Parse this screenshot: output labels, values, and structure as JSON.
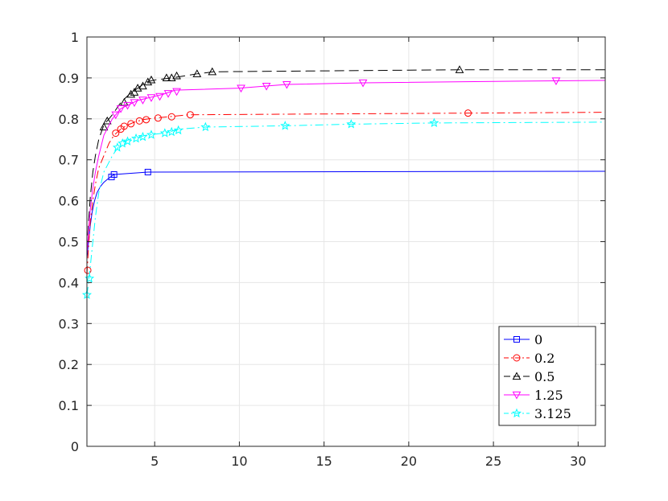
{
  "chart_data": {
    "type": "line",
    "title": "",
    "xlabel": "",
    "ylabel": "",
    "xlim": [
      1,
      31.6
    ],
    "ylim": [
      0,
      1
    ],
    "grid": true,
    "legend_position": "bottom-right",
    "x_ticks": [
      5,
      10,
      15,
      20,
      25,
      30
    ],
    "x_tick_labels": [
      "5",
      "10",
      "15",
      "20",
      "25",
      "30"
    ],
    "y_ticks": [
      0,
      0.1,
      0.2,
      0.3,
      0.4,
      0.5,
      0.6,
      0.7,
      0.8,
      0.9,
      1
    ],
    "y_tick_labels": [
      "0",
      "0.1",
      "0.2",
      "0.3",
      "0.4",
      "0.5",
      "0.6",
      "0.7",
      "0.8",
      "0.9",
      "1"
    ],
    "series": [
      {
        "name": "0",
        "color": "#0000ff",
        "line_style": "solid",
        "marker": "square",
        "points": [
          [
            1.0,
            0.46
          ],
          [
            1.1,
            0.5
          ],
          [
            1.2,
            0.54
          ],
          [
            1.3,
            0.57
          ],
          [
            1.45,
            0.6
          ],
          [
            1.6,
            0.62
          ],
          [
            1.8,
            0.635
          ],
          [
            2.0,
            0.645
          ],
          [
            2.2,
            0.652
          ],
          [
            2.4,
            0.658
          ],
          [
            2.6,
            0.664
          ],
          [
            4.6,
            0.67
          ],
          [
            31.6,
            0.672
          ]
        ],
        "markers": [
          [
            2.45,
            0.658
          ],
          [
            2.6,
            0.664
          ],
          [
            4.6,
            0.67
          ]
        ]
      },
      {
        "name": "0.2",
        "color": "#ff0000",
        "line_style": "dashdot",
        "marker": "circle",
        "points": [
          [
            1.0,
            0.42
          ],
          [
            1.1,
            0.49
          ],
          [
            1.2,
            0.55
          ],
          [
            1.35,
            0.6
          ],
          [
            1.5,
            0.64
          ],
          [
            1.7,
            0.68
          ],
          [
            2.0,
            0.71
          ],
          [
            2.3,
            0.74
          ],
          [
            2.6,
            0.76
          ],
          [
            3.0,
            0.775
          ],
          [
            3.4,
            0.785
          ],
          [
            3.8,
            0.792
          ],
          [
            4.3,
            0.798
          ],
          [
            5.0,
            0.802
          ],
          [
            5.8,
            0.805
          ],
          [
            7.0,
            0.81
          ],
          [
            23.5,
            0.814
          ],
          [
            31.6,
            0.816
          ]
        ],
        "markers": [
          [
            1.05,
            0.43
          ],
          [
            2.7,
            0.765
          ],
          [
            3.0,
            0.775
          ],
          [
            3.2,
            0.782
          ],
          [
            3.6,
            0.788
          ],
          [
            4.1,
            0.795
          ],
          [
            4.5,
            0.798
          ],
          [
            5.2,
            0.802
          ],
          [
            6.0,
            0.805
          ],
          [
            7.1,
            0.81
          ],
          [
            23.5,
            0.814
          ]
        ]
      },
      {
        "name": "0.5",
        "color": "#000000",
        "line_style": "dashed",
        "marker": "triangle-up",
        "points": [
          [
            1.0,
            0.48
          ],
          [
            1.1,
            0.55
          ],
          [
            1.2,
            0.61
          ],
          [
            1.35,
            0.67
          ],
          [
            1.5,
            0.71
          ],
          [
            1.7,
            0.75
          ],
          [
            2.0,
            0.785
          ],
          [
            2.5,
            0.81
          ],
          [
            3.0,
            0.84
          ],
          [
            3.5,
            0.86
          ],
          [
            4.0,
            0.875
          ],
          [
            4.5,
            0.89
          ],
          [
            5.0,
            0.895
          ],
          [
            6.0,
            0.9
          ],
          [
            7.5,
            0.91
          ],
          [
            8.5,
            0.915
          ],
          [
            23.0,
            0.92
          ],
          [
            31.6,
            0.92
          ]
        ],
        "markers": [
          [
            2.0,
            0.78
          ],
          [
            2.2,
            0.795
          ],
          [
            3.2,
            0.84
          ],
          [
            3.6,
            0.86
          ],
          [
            3.8,
            0.865
          ],
          [
            4.0,
            0.875
          ],
          [
            4.3,
            0.88
          ],
          [
            4.6,
            0.89
          ],
          [
            4.8,
            0.895
          ],
          [
            5.7,
            0.9
          ],
          [
            6.0,
            0.9
          ],
          [
            6.3,
            0.905
          ],
          [
            7.5,
            0.91
          ],
          [
            8.4,
            0.915
          ],
          [
            23.0,
            0.92
          ]
        ]
      },
      {
        "name": "1.25",
        "color": "#ff00ff",
        "line_style": "solid",
        "marker": "triangle-down",
        "points": [
          [
            1.0,
            0.47
          ],
          [
            1.1,
            0.53
          ],
          [
            1.2,
            0.58
          ],
          [
            1.35,
            0.63
          ],
          [
            1.5,
            0.67
          ],
          [
            1.7,
            0.71
          ],
          [
            2.0,
            0.76
          ],
          [
            2.5,
            0.8
          ],
          [
            3.0,
            0.825
          ],
          [
            3.5,
            0.835
          ],
          [
            4.0,
            0.845
          ],
          [
            4.5,
            0.85
          ],
          [
            5.0,
            0.855
          ],
          [
            5.5,
            0.86
          ],
          [
            6.2,
            0.87
          ],
          [
            10.0,
            0.875
          ],
          [
            11.5,
            0.88
          ],
          [
            12.8,
            0.884
          ],
          [
            17.3,
            0.888
          ],
          [
            28.7,
            0.893
          ],
          [
            31.6,
            0.894
          ]
        ],
        "markers": [
          [
            2.7,
            0.81
          ],
          [
            3.0,
            0.825
          ],
          [
            3.4,
            0.833
          ],
          [
            3.8,
            0.84
          ],
          [
            4.3,
            0.846
          ],
          [
            4.8,
            0.852
          ],
          [
            5.3,
            0.855
          ],
          [
            5.8,
            0.862
          ],
          [
            6.3,
            0.867
          ],
          [
            10.1,
            0.875
          ],
          [
            11.6,
            0.88
          ],
          [
            12.8,
            0.884
          ],
          [
            17.3,
            0.888
          ],
          [
            28.7,
            0.893
          ]
        ]
      },
      {
        "name": "3.125",
        "color": "#00ffff",
        "line_style": "dashdot",
        "marker": "star",
        "points": [
          [
            1.0,
            0.37
          ],
          [
            1.1,
            0.4
          ],
          [
            1.2,
            0.44
          ],
          [
            1.35,
            0.5
          ],
          [
            1.5,
            0.56
          ],
          [
            1.7,
            0.62
          ],
          [
            2.0,
            0.67
          ],
          [
            2.5,
            0.71
          ],
          [
            3.0,
            0.74
          ],
          [
            3.5,
            0.75
          ],
          [
            4.0,
            0.755
          ],
          [
            4.5,
            0.76
          ],
          [
            5.5,
            0.765
          ],
          [
            6.5,
            0.775
          ],
          [
            8.0,
            0.78
          ],
          [
            12.7,
            0.783
          ],
          [
            16.6,
            0.787
          ],
          [
            21.5,
            0.79
          ],
          [
            31.6,
            0.792
          ]
        ],
        "markers": [
          [
            1.0,
            0.37
          ],
          [
            1.15,
            0.41
          ],
          [
            2.8,
            0.73
          ],
          [
            3.1,
            0.74
          ],
          [
            3.4,
            0.745
          ],
          [
            3.9,
            0.752
          ],
          [
            4.3,
            0.756
          ],
          [
            4.8,
            0.761
          ],
          [
            5.6,
            0.765
          ],
          [
            6.0,
            0.768
          ],
          [
            6.4,
            0.772
          ],
          [
            8.0,
            0.78
          ],
          [
            12.7,
            0.783
          ],
          [
            16.6,
            0.787
          ],
          [
            21.5,
            0.79
          ]
        ]
      }
    ]
  }
}
